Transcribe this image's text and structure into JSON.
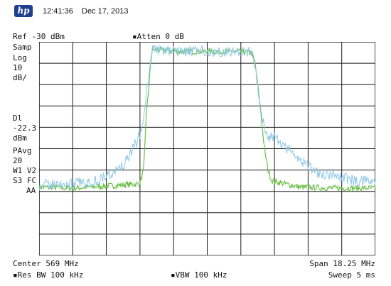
{
  "header": {
    "logo_text": "hp",
    "time": "12:41:36",
    "date": "Dec 17, 2013"
  },
  "top_labels": {
    "ref_level": "Ref -30 dBm",
    "atten": "▪Atten 0 dB"
  },
  "left_annotations": {
    "detector": "Samp",
    "scale_type": "Log",
    "scale_value": "10",
    "scale_unit": "dB/",
    "display_line_label": "Dl",
    "display_line_value": "-22.3",
    "display_line_unit": "dBm",
    "averaging": "PAvg",
    "avg_count": "20",
    "traces": "W1  V2",
    "sweep_mode": "S3  FC",
    "coupling": "AA"
  },
  "bottom_labels": {
    "center": "Center 569 MHz",
    "span": "Span 18.25 MHz",
    "res_bw": "▪Res BW 100 kHz",
    "vbw": "▪VBW 100 kHz",
    "sweep": "Sweep 5 ms"
  },
  "colors": {
    "grid": "#1a1a1a",
    "trace_green": "#6cc04a",
    "trace_blue": "#8fc8e8",
    "logo_bg": "#1d3f8f"
  },
  "chart_data": {
    "type": "line",
    "grid": true,
    "x_unit": "MHz",
    "y_unit": "dBm",
    "xlim": [
      559.875,
      578.125
    ],
    "ylim": [
      -130,
      -30
    ],
    "series": [
      {
        "color": "#6cc04a",
        "x": [
          559.875,
          561.7,
          563.5,
          565.3,
          565.5,
          565.6,
          565.7,
          566.0,
          566.7,
          567.5,
          569.0,
          570.5,
          571.4,
          571.6,
          571.9,
          572.1,
          572.3,
          572.5,
          574.0,
          576.0,
          578.125
        ],
        "y": [
          -98.0,
          -98.5,
          -97.5,
          -96.5,
          -92.0,
          -82.0,
          -64.0,
          -33.5,
          -34.0,
          -34.5,
          -34.5,
          -34.5,
          -35.0,
          -40.0,
          -62.0,
          -80.0,
          -90.0,
          -95.0,
          -98.0,
          -98.5,
          -98.5
        ]
      },
      {
        "color": "#8fc8e8",
        "x": [
          559.875,
          561.7,
          563.0,
          564.2,
          564.7,
          565.2,
          565.5,
          565.7,
          566.0,
          566.7,
          567.5,
          569.0,
          570.5,
          571.4,
          571.6,
          571.9,
          572.1,
          572.3,
          572.8,
          573.4,
          574.0,
          575.0,
          576.0,
          577.0,
          578.125
        ],
        "y": [
          -97.0,
          -96.5,
          -95.0,
          -90.0,
          -85.0,
          -76.0,
          -70.0,
          -55.0,
          -33.5,
          -34.0,
          -34.5,
          -34.5,
          -34.5,
          -35.0,
          -40.0,
          -63.0,
          -70.0,
          -74.0,
          -76.0,
          -80.0,
          -85.0,
          -91.0,
          -93.0,
          -95.0,
          -95.5
        ]
      }
    ]
  }
}
